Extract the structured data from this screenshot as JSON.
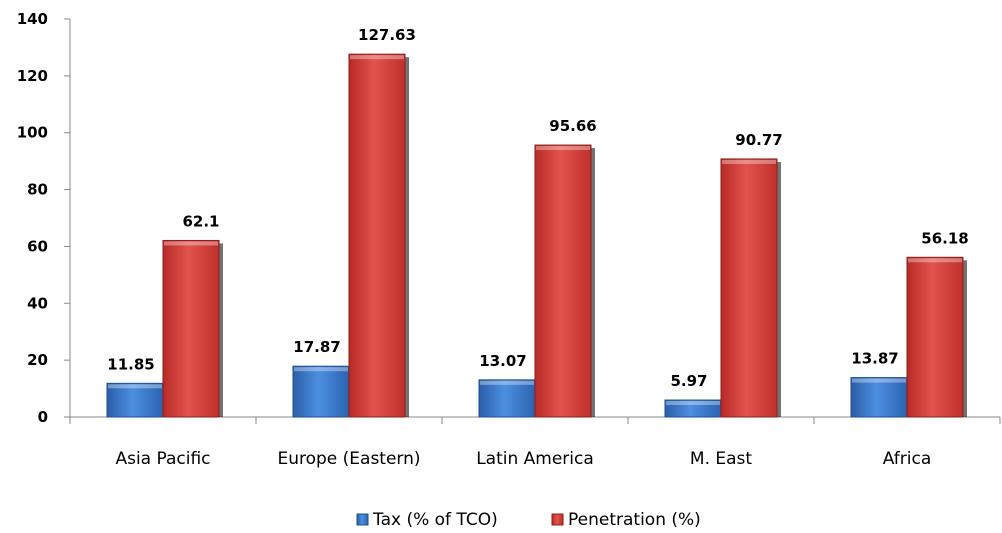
{
  "chart_data": {
    "type": "bar",
    "title": "",
    "xlabel": "",
    "ylabel": "",
    "categories": [
      "Asia Pacific",
      "Europe (Eastern)",
      "Latin America",
      "M. East",
      "Africa"
    ],
    "series": [
      {
        "name": "Tax (% of TCO)",
        "values": [
          11.85,
          17.87,
          13.07,
          5.97,
          13.87
        ],
        "labels": [
          "11.85",
          "17.87",
          "13.07",
          "5.97",
          "13.87"
        ],
        "color": "#3a78c9",
        "color_dark": "#1f4f8f"
      },
      {
        "name": "Penetration (%)",
        "values": [
          62.1,
          127.63,
          95.66,
          90.77,
          56.18
        ],
        "labels": [
          "62.1",
          "127.63",
          "95.66",
          "90.77",
          "56.18"
        ],
        "color": "#d53a35",
        "color_dark": "#8e1d1b"
      }
    ],
    "ylim": [
      0,
      140
    ],
    "yticks": [
      0,
      20,
      40,
      60,
      80,
      100,
      120,
      140
    ],
    "grid": false,
    "legend_position": "bottom"
  }
}
